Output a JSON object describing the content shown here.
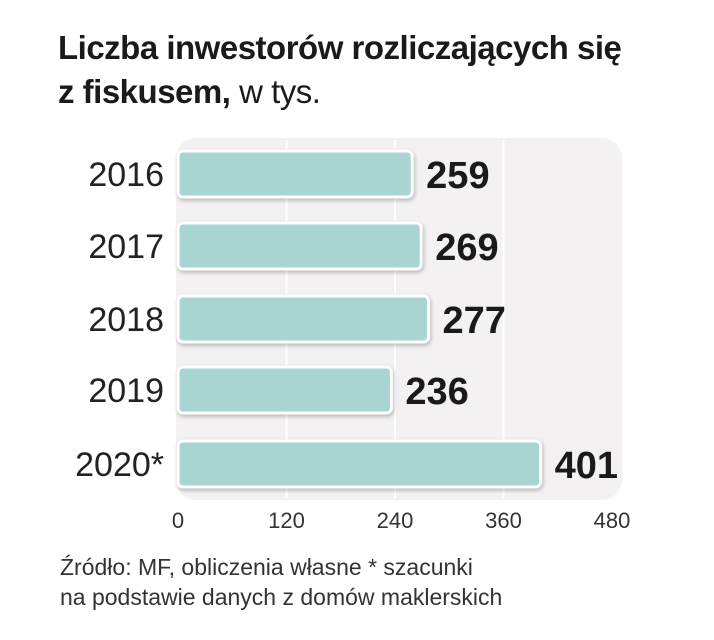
{
  "title_bold_line1": "Liczba inwestorów rozliczających się",
  "title_bold_line2": "z fiskusem,",
  "title_unit": "w tys.",
  "source_line1": "Źródło: MF, obliczenia własne * szacunki",
  "source_line2": "na podstawie danych z domów maklerskich",
  "colors": {
    "bar_fill": "#a8d5d2",
    "bar_stroke": "#ffffff",
    "plot_bg": "#f3f1f2",
    "grid": "#ffffff"
  },
  "chart_data": {
    "type": "bar",
    "orientation": "horizontal",
    "categories": [
      "2016",
      "2017",
      "2018",
      "2019",
      "2020*"
    ],
    "values": [
      259,
      269,
      277,
      236,
      401
    ],
    "value_labels": [
      "259",
      "269",
      "277",
      "236",
      "401"
    ],
    "x_ticks": [
      "0",
      "120",
      "240",
      "360",
      "480"
    ],
    "xlim": [
      0,
      480
    ],
    "grid": true,
    "legend": "none"
  }
}
